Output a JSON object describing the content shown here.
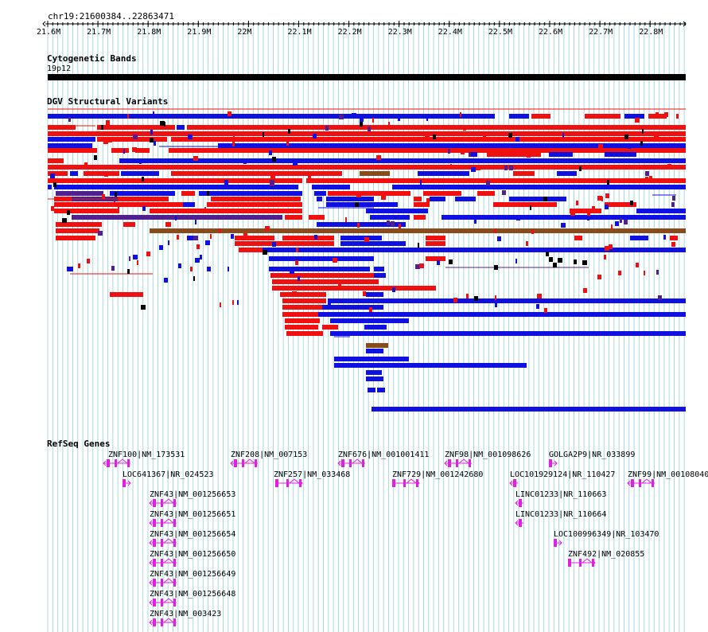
{
  "ruler": {
    "region": "chr19:21600384..22863471",
    "ticks": [
      "21.6M",
      "21.7M",
      "21.8M",
      "21.9M",
      "22M",
      "22.1M",
      "22.2M",
      "22.3M",
      "22.4M",
      "22.5M",
      "22.6M",
      "22.7M",
      "22.8M"
    ]
  },
  "tracks": {
    "cyto": {
      "title": "Cytogenetic Bands",
      "band": "19p12"
    },
    "dgv": {
      "title": "DGV Structural Variants"
    },
    "refseq": {
      "title": "RefSeq Genes"
    }
  },
  "colors": {
    "loss": "#f01010",
    "gain": "#1010e0",
    "gainloss": "#502090",
    "inversion": "#8b4a1a",
    "gene": "#e020e0",
    "grid": "#a8d8e0",
    "cyto": "#000000"
  },
  "genes": [
    {
      "label": "ZNF100|NM_173531",
      "strand": "-"
    },
    {
      "label": "LOC641367|NR_024523",
      "strand": "+"
    },
    {
      "label": "ZNF43|NM_001256653",
      "strand": "-"
    },
    {
      "label": "ZNF43|NM_001256651",
      "strand": "-"
    },
    {
      "label": "ZNF43|NM_001256654",
      "strand": "-"
    },
    {
      "label": "ZNF43|NM_001256650",
      "strand": "-"
    },
    {
      "label": "ZNF43|NM_001256649",
      "strand": "-"
    },
    {
      "label": "ZNF43|NM_001256648",
      "strand": "-"
    },
    {
      "label": "ZNF43|NM_003423",
      "strand": "-"
    },
    {
      "label": "ZNF208|NM_007153",
      "strand": "-"
    },
    {
      "label": "ZNF257|NM_033468",
      "strand": "+"
    },
    {
      "label": "ZNF676|NM_001001411",
      "strand": "-"
    },
    {
      "label": "ZNF729|NM_001242680",
      "strand": "+"
    },
    {
      "label": "ZNF98|NM_001098626",
      "strand": "-"
    },
    {
      "label": "GOLGA2P9|NR_033899",
      "strand": "+"
    },
    {
      "label": "LOC101929124|NR_110427",
      "strand": "-"
    },
    {
      "label": "LINC01233|NR_110663",
      "strand": "-"
    },
    {
      "label": "LINC01233|NR_110664",
      "strand": "-"
    },
    {
      "label": "LOC100996349|NR_103470",
      "strand": "+"
    },
    {
      "label": "ZNF492|NM_020855",
      "strand": "+"
    },
    {
      "label": "ZNF99|NM_00108040",
      "strand": "-"
    }
  ]
}
